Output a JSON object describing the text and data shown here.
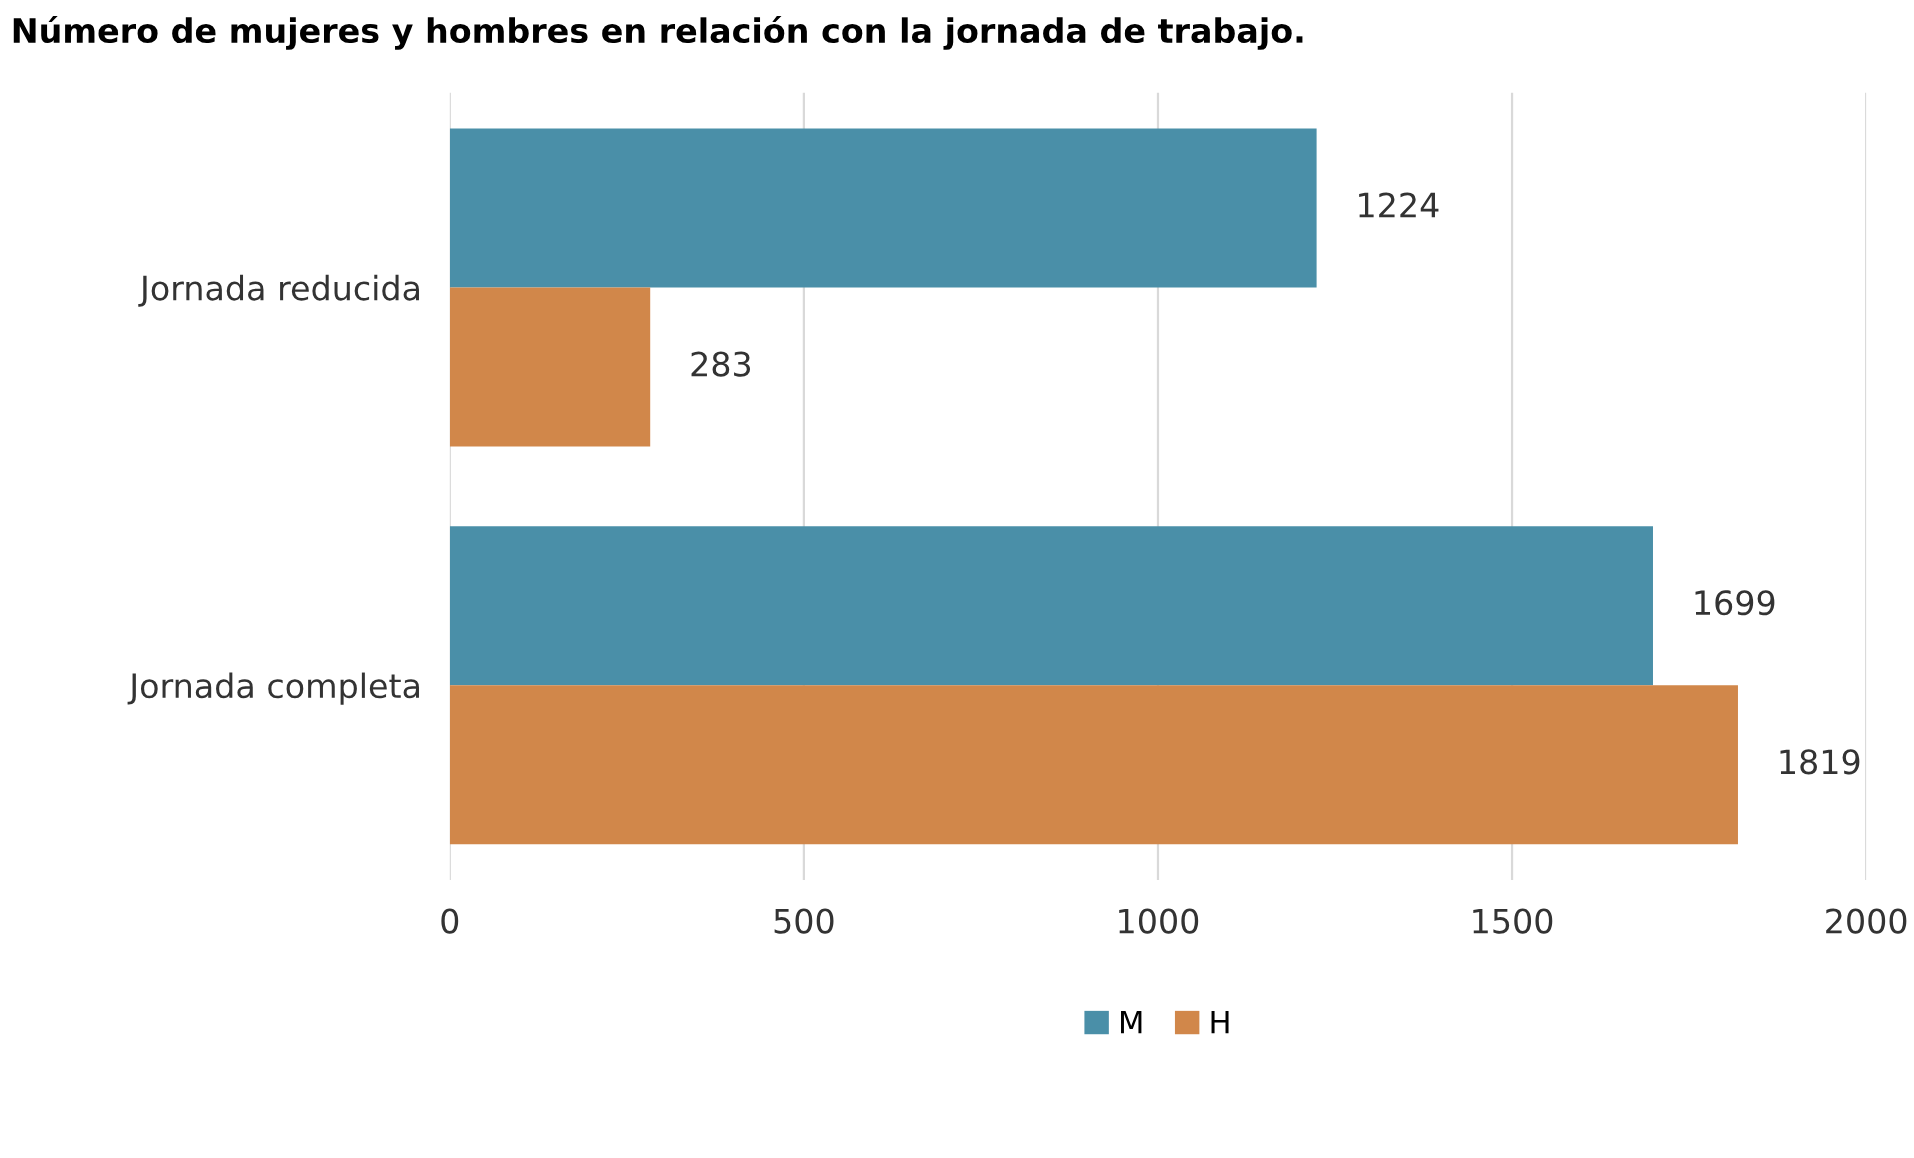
{
  "chart_data": {
    "type": "bar",
    "orientation": "horizontal",
    "title": "Número de mujeres y hombres en relación con la jornada de trabajo.",
    "categories": [
      "Jornada reducida",
      "Jornada completa"
    ],
    "series": [
      {
        "name": "M",
        "color": "#4a8fa8",
        "values": [
          1224,
          1699
        ]
      },
      {
        "name": "H",
        "color": "#d1874a",
        "values": [
          283,
          1819
        ]
      }
    ],
    "xlim": [
      0,
      2000
    ],
    "xticks": [
      0,
      500,
      1000,
      1500,
      2000
    ],
    "grid": "x",
    "legend": "bottom",
    "data_labels": true
  }
}
